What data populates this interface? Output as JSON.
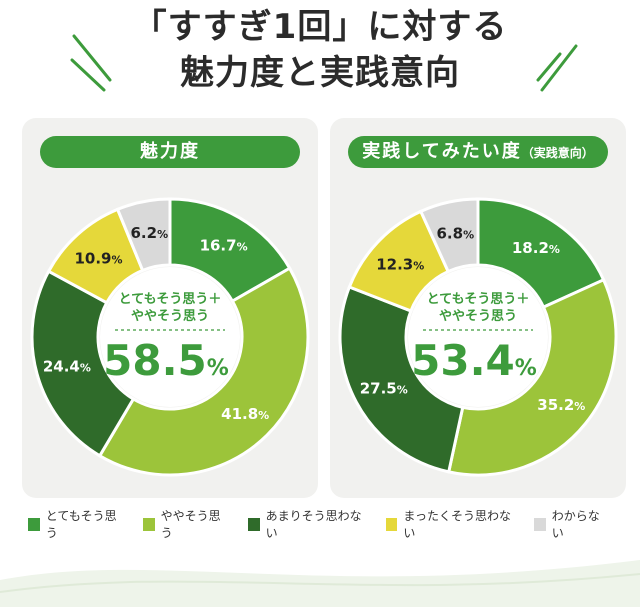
{
  "title": {
    "line1": "「すすぎ1回」に対する",
    "line2": "魅力度と実践意向"
  },
  "colors": {
    "very_agree": "#3d9b3c",
    "somewhat_agree": "#9cc43a",
    "not_much": "#2f6b2a",
    "not_at_all": "#e5d83a",
    "dont_know": "#d9d9d9",
    "accent": "#3d9b3c"
  },
  "chart_data": [
    {
      "type": "pie",
      "title": "魅力度",
      "title_small": "",
      "center_caption_line1": "とてもそう思う＋",
      "center_caption_line2": "ややそう思う",
      "center_value": "58.5",
      "center_unit": "%",
      "categories": [
        "とてもそう思う",
        "ややそう思う",
        "あまりそう思わない",
        "まったくそう思わない",
        "わからない"
      ],
      "values": [
        16.7,
        41.8,
        24.4,
        10.9,
        6.2
      ],
      "value_labels": [
        "16.7",
        "41.8",
        "24.4",
        "10.9",
        "6.2"
      ],
      "unit": "%"
    },
    {
      "type": "pie",
      "title": "実践してみたい度",
      "title_small": "（実践意向）",
      "center_caption_line1": "とてもそう思う＋",
      "center_caption_line2": "ややそう思う",
      "center_value": "53.4",
      "center_unit": "%",
      "categories": [
        "とてもそう思う",
        "ややそう思う",
        "あまりそう思わない",
        "まったくそう思わない",
        "わからない"
      ],
      "values": [
        18.2,
        35.2,
        27.5,
        12.3,
        6.8
      ],
      "value_labels": [
        "18.2",
        "35.2",
        "27.5",
        "12.3",
        "6.8"
      ],
      "unit": "%"
    }
  ],
  "legend": [
    {
      "label": "とてもそう思う",
      "color": "#3d9b3c"
    },
    {
      "label": "ややそう思う",
      "color": "#9cc43a"
    },
    {
      "label": "あまりそう思わない",
      "color": "#2f6b2a"
    },
    {
      "label": "まったくそう思わない",
      "color": "#e5d83a"
    },
    {
      "label": "わからない",
      "color": "#d9d9d9"
    }
  ]
}
